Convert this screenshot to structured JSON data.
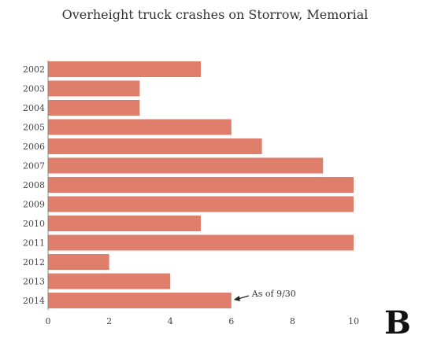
{
  "chart_data": {
    "type": "bar",
    "orientation": "horizontal",
    "title": "Overheight truck crashes on Storrow, Memorial",
    "categories": [
      "2002",
      "2003",
      "2004",
      "2005",
      "2006",
      "2007",
      "2008",
      "2009",
      "2010",
      "2011",
      "2012",
      "2013",
      "2014"
    ],
    "values": [
      5,
      3,
      3,
      6,
      7,
      9,
      10,
      10,
      5,
      10,
      2,
      4,
      6
    ],
    "xlim": [
      0,
      10
    ],
    "xticks": [
      "0",
      "2",
      "4",
      "6",
      "8",
      "10"
    ],
    "xlabel": "",
    "ylabel": "",
    "grid": false,
    "bar_color": "#e07e6c",
    "annotation": {
      "text": "As of 9/30",
      "category": "2014"
    }
  },
  "logo": {
    "text": "B"
  }
}
